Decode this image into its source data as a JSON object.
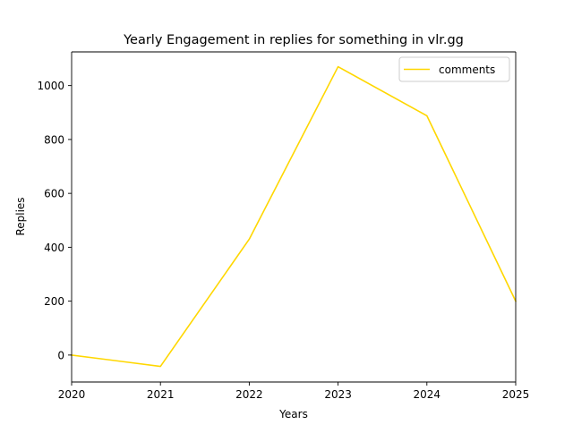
{
  "chart_data": {
    "type": "line",
    "title": "Yearly Engagement in replies for something in vlr.gg",
    "xlabel": "Years",
    "ylabel": "Replies",
    "x": [
      2020,
      2021,
      2022,
      2023,
      2024,
      2025
    ],
    "x_ticks": [
      "2020",
      "2021",
      "2022",
      "2023",
      "2024",
      "2025"
    ],
    "y_ticks": [
      "0",
      "200",
      "400",
      "600",
      "800",
      "1000"
    ],
    "xlim": [
      2020,
      2025
    ],
    "ylim": [
      -100,
      1125
    ],
    "grid": false,
    "legend_position": "top-right",
    "series": [
      {
        "name": "comments",
        "color": "#ffd700",
        "values": [
          0,
          -42,
          430,
          1070,
          888,
          200
        ]
      }
    ]
  }
}
